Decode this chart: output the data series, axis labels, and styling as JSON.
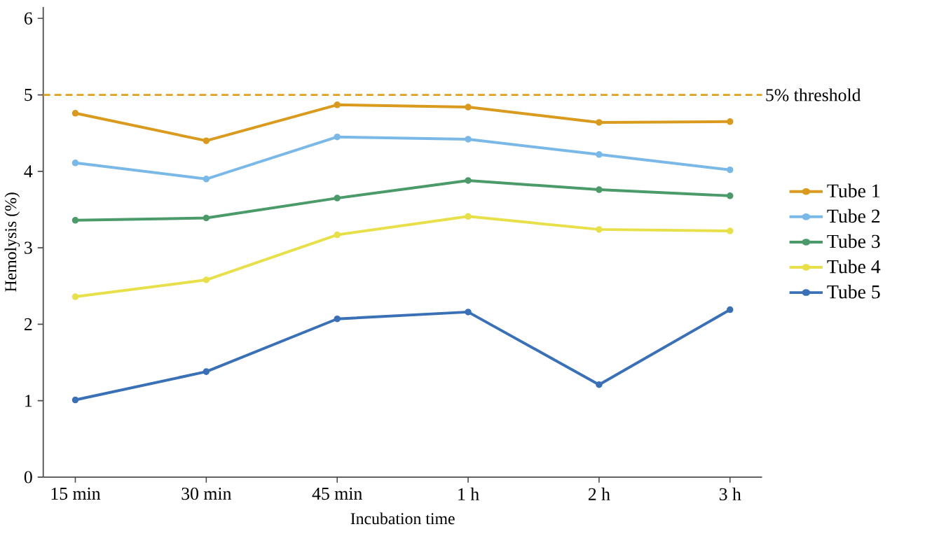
{
  "chart_data": {
    "type": "line",
    "xlabel": "Incubation time",
    "ylabel": "Hemolysis (%)",
    "categories": [
      "15 min",
      "30 min",
      "45 min",
      "1 h",
      "2 h",
      "3 h"
    ],
    "series": [
      {
        "name": "Tube 1",
        "color": "#d99a1e",
        "values": [
          4.76,
          4.4,
          4.87,
          4.84,
          4.64,
          4.65
        ]
      },
      {
        "name": "Tube 2",
        "color": "#7ab8e8",
        "values": [
          4.11,
          3.9,
          4.45,
          4.42,
          4.22,
          4.02
        ]
      },
      {
        "name": "Tube 3",
        "color": "#4a9a6a",
        "values": [
          3.36,
          3.39,
          3.65,
          3.88,
          3.76,
          3.68
        ]
      },
      {
        "name": "Tube 4",
        "color": "#e8e04a",
        "values": [
          2.36,
          2.58,
          3.17,
          3.41,
          3.24,
          3.22
        ]
      },
      {
        "name": "Tube 5",
        "color": "#3a70b5",
        "values": [
          1.01,
          1.38,
          2.07,
          2.16,
          1.21,
          2.19
        ]
      }
    ],
    "ylim": [
      0,
      6.15
    ],
    "yticks": [
      0,
      1,
      2,
      3,
      4,
      5,
      6
    ],
    "ref_lines": [
      {
        "axis": "y",
        "value": 5,
        "label": "5% threshold",
        "color": "#e0a020",
        "line_style": "dashed"
      }
    ],
    "grid": false,
    "legend": "right",
    "marker": "circle",
    "line_style": "solid"
  }
}
